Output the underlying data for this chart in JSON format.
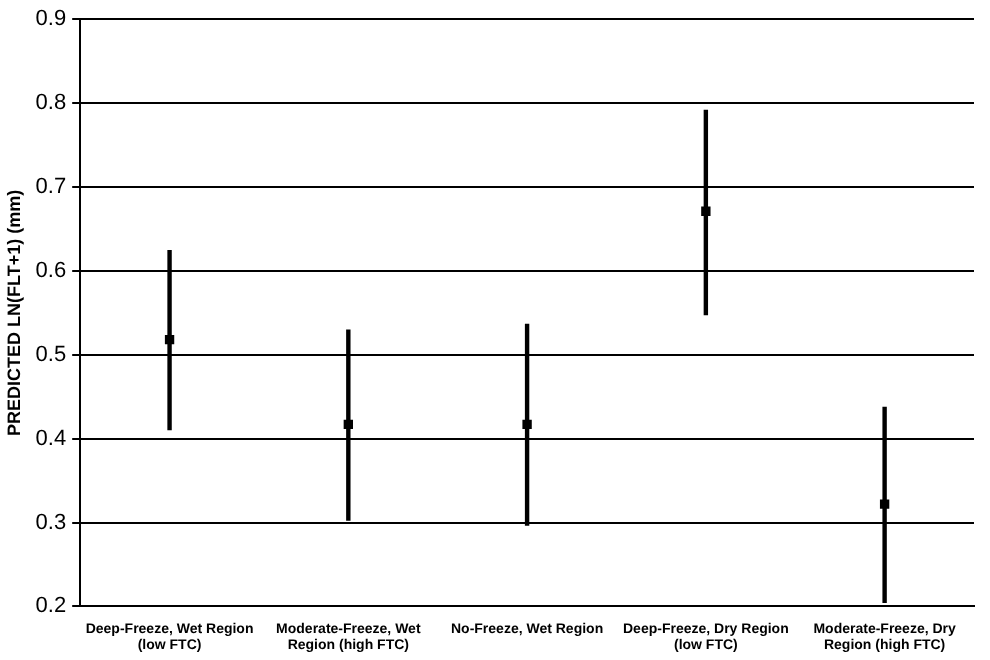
{
  "chart_data": {
    "type": "scatter",
    "ylabel": "PREDICTED LN(FLT+1) (mm)",
    "categories": [
      "Deep-Freeze, Wet Region (low FTC)",
      "Moderate-Freeze, Wet Region (high FTC)",
      "No-Freeze, Wet Region",
      "Deep-Freeze, Dry Region (low FTC)",
      "Moderate-Freeze, Dry Region (high FTC)"
    ],
    "values": [
      0.518,
      0.417,
      0.417,
      0.671,
      0.322
    ],
    "errors": [
      [
        0.41,
        0.625
      ],
      [
        0.302,
        0.53
      ],
      [
        0.296,
        0.537
      ],
      [
        0.547,
        0.792
      ],
      [
        0.204,
        0.438
      ]
    ],
    "color": "#000000",
    "marker": "square",
    "ylim": [
      0.2,
      0.9
    ],
    "yticks": [
      0.2,
      0.3,
      0.4,
      0.5,
      0.6,
      0.7,
      0.8,
      0.9
    ],
    "grid": "y",
    "legend": false
  }
}
